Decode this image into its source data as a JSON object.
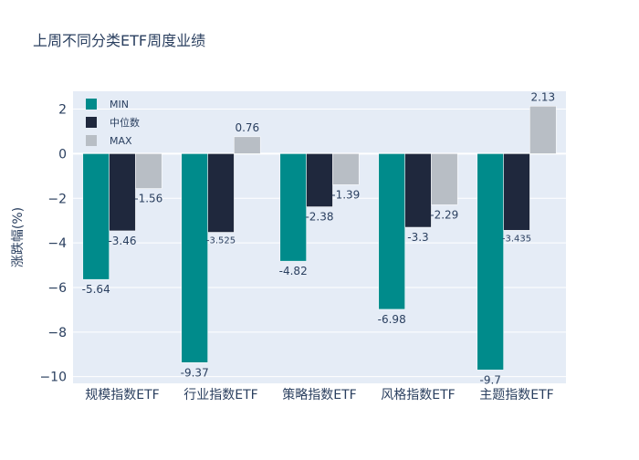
{
  "chart_data": {
    "type": "bar",
    "title": "上周不同分类ETF周度业绩",
    "xlabel": "",
    "ylabel": "涨跌幅(%)",
    "ylim": [
      -10.3,
      2.8
    ],
    "yticks": [
      2,
      0,
      -2,
      -4,
      -6,
      -8,
      -10
    ],
    "ytick_labels": [
      "2",
      "0",
      "−2",
      "−4",
      "−6",
      "−8",
      "−10"
    ],
    "categories": [
      "规模指数ETF",
      "行业指数ETF",
      "策略指数ETF",
      "风格指数ETF",
      "主题指数ETF"
    ],
    "series": [
      {
        "name": "MIN",
        "color": "#008b8b",
        "values": [
          -5.64,
          -9.37,
          -4.82,
          -6.98,
          -9.7
        ],
        "labels": [
          "-5.64",
          "-9.37",
          "-4.82",
          "-6.98",
          "-9.7"
        ]
      },
      {
        "name": "中位数",
        "color": "#1f283d",
        "values": [
          -3.46,
          -3.525,
          -2.38,
          -3.3,
          -3.435
        ],
        "labels": [
          "-3.46",
          "-3.525",
          "-2.38",
          "-3.3",
          "-3.435"
        ]
      },
      {
        "name": "MAX",
        "color": "#b8bec5",
        "values": [
          -1.56,
          0.76,
          -1.39,
          -2.29,
          2.13
        ],
        "labels": [
          "-1.56",
          "0.76",
          "-1.39",
          "-2.29",
          "2.13"
        ]
      }
    ],
    "grid": true,
    "legend_position": "top-left",
    "colors": {
      "plot_bg": "#e5ecf6",
      "grid": "#ffffff",
      "text": "#2a3f5f"
    }
  }
}
